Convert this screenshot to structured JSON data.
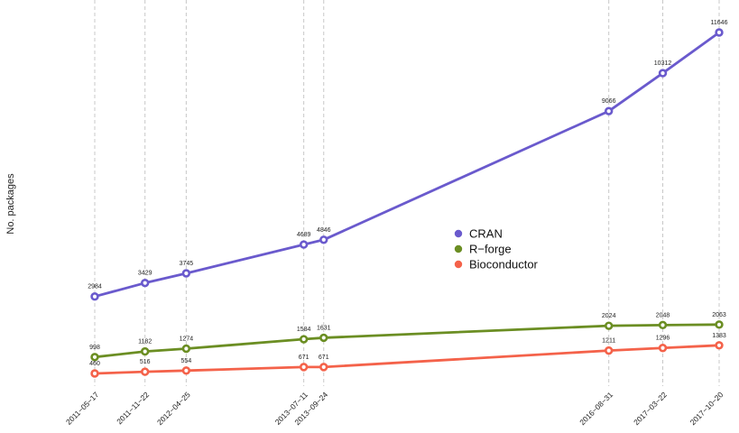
{
  "chart_data": {
    "type": "line",
    "title": "",
    "xlabel": "",
    "ylabel": "No. packages",
    "x": [
      "2011-05-17",
      "2011-11-22",
      "2012-04-25",
      "2013-07-11",
      "2013-09-24",
      "2016-08-31",
      "2017-03-22",
      "2017-10-20"
    ],
    "series": [
      {
        "name": "CRAN",
        "color": "#6a5acd",
        "values": [
          2984,
          3429,
          3745,
          4689,
          4846,
          9066,
          10312,
          11646
        ]
      },
      {
        "name": "R-forge",
        "color": "#6b8e23",
        "values": [
          998,
          1182,
          1274,
          1584,
          1631,
          2024,
          2048,
          2063
        ]
      },
      {
        "name": "Bioconductor",
        "color": "#f4624a",
        "values": [
          460,
          516,
          554,
          671,
          671,
          1211,
          1296,
          1383
        ]
      }
    ],
    "legend_entries": [
      "CRAN",
      "R−forge",
      "Bioconductor"
    ],
    "x_tick_labels": [
      "2011−05−17",
      "2011−11−22",
      "2012−04−25",
      "2013−07−11",
      "2013−09−24",
      "2016−08−31",
      "2017−03−22",
      "2017−10−20"
    ],
    "x_axis": "date",
    "y_axis_ticks_shown": false,
    "grid": "vertical dashed lines at each date",
    "legend_position": "center-right"
  }
}
